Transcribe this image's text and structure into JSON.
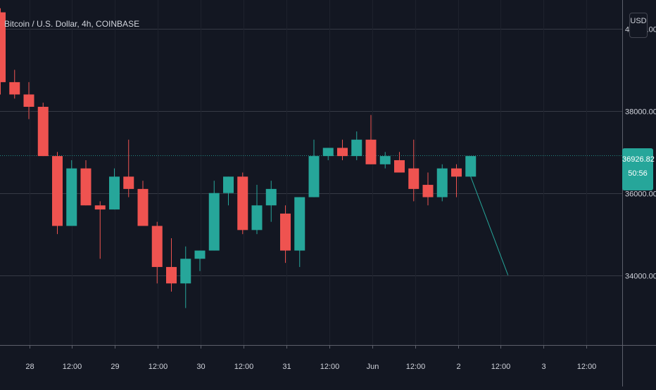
{
  "chart_data": {
    "type": "candlestick",
    "title": "Bitcoin / U.S. Dollar, 4h, COINBASE",
    "currency_label": "USD",
    "y_tick_labels": [
      "40000.00",
      "38000.00",
      "36000.00",
      "34000.00"
    ],
    "y_ticks": [
      40000,
      38000,
      36000,
      34000
    ],
    "x_tick_labels": [
      "28",
      "12:00",
      "29",
      "12:00",
      "30",
      "12:00",
      "31",
      "12:00",
      "Jun",
      "12:00",
      "2",
      "12:00",
      "3",
      "12:00"
    ],
    "last_price": "36926.82",
    "countdown": "50:56",
    "colors": {
      "up": "#26a69a",
      "down": "#ef5350",
      "background": "#131722",
      "grid": "#2a2e39",
      "text": "#d1d4dc",
      "drawing_line": "#26a69a"
    },
    "candles": [
      {
        "o": 40400,
        "h": 40500,
        "l": 38400,
        "c": 38700
      },
      {
        "o": 38700,
        "h": 39000,
        "l": 38300,
        "c": 38400
      },
      {
        "o": 38400,
        "h": 38700,
        "l": 37800,
        "c": 38100
      },
      {
        "o": 38100,
        "h": 38200,
        "l": 36900,
        "c": 36900
      },
      {
        "o": 36900,
        "h": 37000,
        "l": 35000,
        "c": 35200
      },
      {
        "o": 35200,
        "h": 36800,
        "l": 35200,
        "c": 36600
      },
      {
        "o": 36600,
        "h": 36800,
        "l": 35700,
        "c": 35700
      },
      {
        "o": 35700,
        "h": 35800,
        "l": 34400,
        "c": 35600
      },
      {
        "o": 35600,
        "h": 36600,
        "l": 35600,
        "c": 36400
      },
      {
        "o": 36400,
        "h": 37300,
        "l": 35900,
        "c": 36100
      },
      {
        "o": 36100,
        "h": 36300,
        "l": 35200,
        "c": 35200
      },
      {
        "o": 35200,
        "h": 35300,
        "l": 33800,
        "c": 34200
      },
      {
        "o": 34200,
        "h": 34900,
        "l": 33600,
        "c": 33800
      },
      {
        "o": 33800,
        "h": 34700,
        "l": 33200,
        "c": 34400
      },
      {
        "o": 34400,
        "h": 34600,
        "l": 34100,
        "c": 34600
      },
      {
        "o": 34600,
        "h": 36300,
        "l": 34600,
        "c": 36000
      },
      {
        "o": 36000,
        "h": 36400,
        "l": 35700,
        "c": 36400
      },
      {
        "o": 36400,
        "h": 36500,
        "l": 35000,
        "c": 35100
      },
      {
        "o": 35100,
        "h": 36200,
        "l": 35000,
        "c": 35700
      },
      {
        "o": 35700,
        "h": 36300,
        "l": 35300,
        "c": 36100
      },
      {
        "o": 35500,
        "h": 35700,
        "l": 34300,
        "c": 34600
      },
      {
        "o": 34600,
        "h": 35900,
        "l": 34200,
        "c": 35900
      },
      {
        "o": 35900,
        "h": 37300,
        "l": 35900,
        "c": 36900
      },
      {
        "o": 36900,
        "h": 37100,
        "l": 36800,
        "c": 37100
      },
      {
        "o": 37100,
        "h": 37300,
        "l": 36800,
        "c": 36900
      },
      {
        "o": 36900,
        "h": 37500,
        "l": 36800,
        "c": 37300
      },
      {
        "o": 37300,
        "h": 37900,
        "l": 36700,
        "c": 36700
      },
      {
        "o": 36700,
        "h": 37000,
        "l": 36600,
        "c": 36900
      },
      {
        "o": 36800,
        "h": 37000,
        "l": 36500,
        "c": 36500
      },
      {
        "o": 36600,
        "h": 37300,
        "l": 35800,
        "c": 36100
      },
      {
        "o": 36200,
        "h": 36500,
        "l": 35700,
        "c": 35900
      },
      {
        "o": 35900,
        "h": 36700,
        "l": 35800,
        "c": 36600
      },
      {
        "o": 36600,
        "h": 36700,
        "l": 35900,
        "c": 36400
      },
      {
        "o": 36400,
        "h": 36900,
        "l": 36400,
        "c": 36900
      }
    ],
    "projection_line": {
      "from": 36400,
      "to": 34000
    },
    "ylim": [
      32300,
      40700
    ],
    "grid": true
  }
}
